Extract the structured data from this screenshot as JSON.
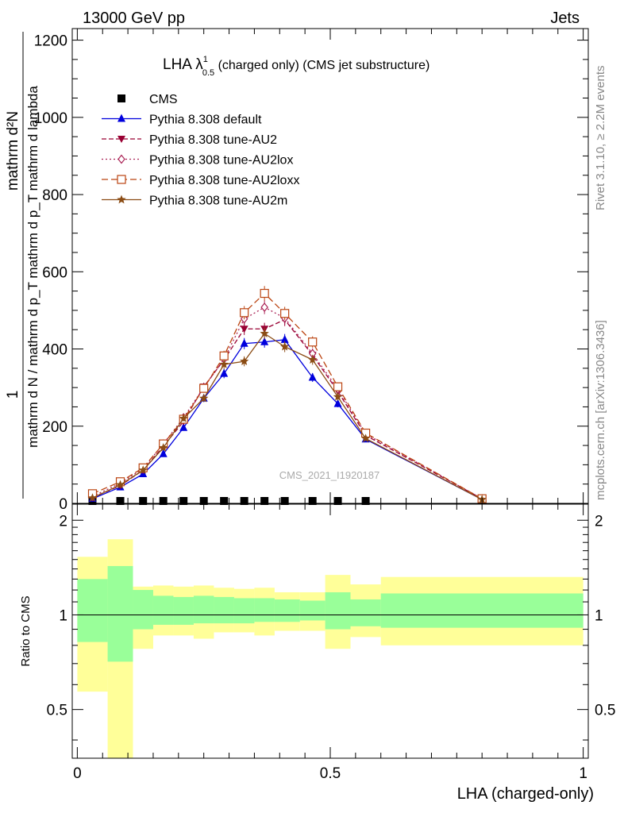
{
  "header": {
    "left": "13000 GeV pp",
    "right": "Jets"
  },
  "side_labels": {
    "rivet": "Rivet 3.1.10, ≥ 2.2M events",
    "mcplots": "mcplots.cern.ch [arXiv:1306.3436]"
  },
  "main_plot": {
    "title_main": "LHA λ",
    "title_sup": "1",
    "title_sub": "0.5",
    "title_rest": " (charged only) (CMS jet substructure)",
    "ylabel_top": "1",
    "ylabel_den": "mathrm d N / mathrm d p_T mathrm d p_T mathrm d lambda",
    "ylabel_num": "mathrm d²N",
    "watermark": "CMS_2021_I1920187"
  },
  "ratio_plot": {
    "ylabel": "Ratio to CMS",
    "xlabel": "LHA (charged-only)"
  },
  "colors": {
    "cms": "#000000",
    "default": "#0000dd",
    "au2": "#990033",
    "au2lox": "#aa2255",
    "au2loxx": "#bb4411",
    "au2m": "#8b4c14",
    "band_inner": "#99ff99",
    "band_outer": "#ffff99"
  },
  "chart_data": [
    {
      "type": "line",
      "title": "LHA λ^1_0.5 (charged only) (CMS jet substructure)",
      "ylabel": "1 / mathrm d N / mathrm d p_T mathrm d p_T mathrm d lambda  mathrm d²N",
      "xlim": [
        -0.01,
        1.01
      ],
      "ylim": [
        0,
        1230
      ],
      "yticks": [
        0,
        200,
        400,
        600,
        800,
        1000,
        1200
      ],
      "legend_position": "top-left",
      "x": [
        0.03,
        0.085,
        0.13,
        0.17,
        0.21,
        0.25,
        0.29,
        0.33,
        0.37,
        0.41,
        0.465,
        0.515,
        0.57,
        0.8
      ],
      "series": [
        {
          "name": "CMS",
          "key": "cms",
          "marker": "square",
          "values": [
            2,
            2,
            2,
            2,
            2,
            2,
            2,
            2,
            2,
            2,
            2,
            2,
            2,
            null
          ]
        },
        {
          "name": "Pythia 8.308 default",
          "key": "default",
          "marker": "triangle-up",
          "dash": "",
          "values": [
            12,
            42,
            76,
            128,
            196,
            272,
            336,
            414,
            418,
            424,
            326,
            258,
            166,
            10
          ]
        },
        {
          "name": "Pythia 8.308 tune-AU2",
          "key": "au2",
          "marker": "triangle-down",
          "dash": "6,3",
          "values": [
            15,
            46,
            86,
            148,
            212,
            302,
            372,
            452,
            452,
            476,
            384,
            290,
            176,
            12
          ]
        },
        {
          "name": "Pythia 8.308 tune-AU2lox",
          "key": "au2lox",
          "marker": "diamond",
          "dash": "2,3",
          "values": [
            18,
            52,
            90,
            154,
            222,
            300,
            374,
            478,
            508,
            480,
            388,
            296,
            180,
            12
          ]
        },
        {
          "name": "Pythia 8.308 tune-AU2loxx",
          "key": "au2loxx",
          "marker": "square-open",
          "dash": "8,4",
          "values": [
            25,
            56,
            92,
            154,
            218,
            298,
            382,
            494,
            544,
            492,
            418,
            302,
            182,
            12
          ]
        },
        {
          "name": "Pythia 8.308 tune-AU2m",
          "key": "au2m",
          "marker": "star",
          "dash": "",
          "values": [
            14,
            48,
            86,
            144,
            220,
            272,
            360,
            368,
            440,
            406,
            372,
            276,
            168,
            10
          ]
        }
      ]
    },
    {
      "type": "area",
      "ylabel": "Ratio to CMS",
      "xlabel": "LHA (charged-only)",
      "xlim": [
        -0.01,
        1.01
      ],
      "ylim": [
        0.35,
        2.25
      ],
      "xticks": [
        0,
        0.5,
        1
      ],
      "xtick_labels": [
        "0",
        "0.5",
        "1"
      ],
      "yticks": [
        0.5,
        1,
        2
      ],
      "ytick_labels": [
        "0.5",
        "1",
        "2"
      ],
      "reference_line": 1,
      "bins": [
        {
          "x0": 0.0,
          "x1": 0.06,
          "inner": [
            0.82,
            1.3
          ],
          "outer": [
            0.57,
            1.53
          ]
        },
        {
          "x0": 0.06,
          "x1": 0.11,
          "inner": [
            0.71,
            1.43
          ],
          "outer": [
            0.3,
            1.74
          ]
        },
        {
          "x0": 0.11,
          "x1": 0.15,
          "inner": [
            0.9,
            1.2
          ],
          "outer": [
            0.78,
            1.23
          ]
        },
        {
          "x0": 0.15,
          "x1": 0.19,
          "inner": [
            0.93,
            1.15
          ],
          "outer": [
            0.86,
            1.24
          ]
        },
        {
          "x0": 0.19,
          "x1": 0.23,
          "inner": [
            0.93,
            1.14
          ],
          "outer": [
            0.86,
            1.23
          ]
        },
        {
          "x0": 0.23,
          "x1": 0.27,
          "inner": [
            0.94,
            1.15
          ],
          "outer": [
            0.84,
            1.24
          ]
        },
        {
          "x0": 0.27,
          "x1": 0.31,
          "inner": [
            0.94,
            1.14
          ],
          "outer": [
            0.88,
            1.22
          ]
        },
        {
          "x0": 0.31,
          "x1": 0.35,
          "inner": [
            0.94,
            1.13
          ],
          "outer": [
            0.88,
            1.21
          ]
        },
        {
          "x0": 0.35,
          "x1": 0.39,
          "inner": [
            0.95,
            1.13
          ],
          "outer": [
            0.86,
            1.22
          ]
        },
        {
          "x0": 0.39,
          "x1": 0.44,
          "inner": [
            0.95,
            1.12
          ],
          "outer": [
            0.89,
            1.18
          ]
        },
        {
          "x0": 0.44,
          "x1": 0.49,
          "inner": [
            0.96,
            1.11
          ],
          "outer": [
            0.89,
            1.18
          ]
        },
        {
          "x0": 0.49,
          "x1": 0.54,
          "inner": [
            0.9,
            1.18
          ],
          "outer": [
            0.78,
            1.34
          ]
        },
        {
          "x0": 0.54,
          "x1": 0.6,
          "inner": [
            0.92,
            1.12
          ],
          "outer": [
            0.85,
            1.25
          ]
        },
        {
          "x0": 0.6,
          "x1": 1.0,
          "inner": [
            0.91,
            1.17
          ],
          "outer": [
            0.8,
            1.32
          ]
        }
      ]
    }
  ]
}
